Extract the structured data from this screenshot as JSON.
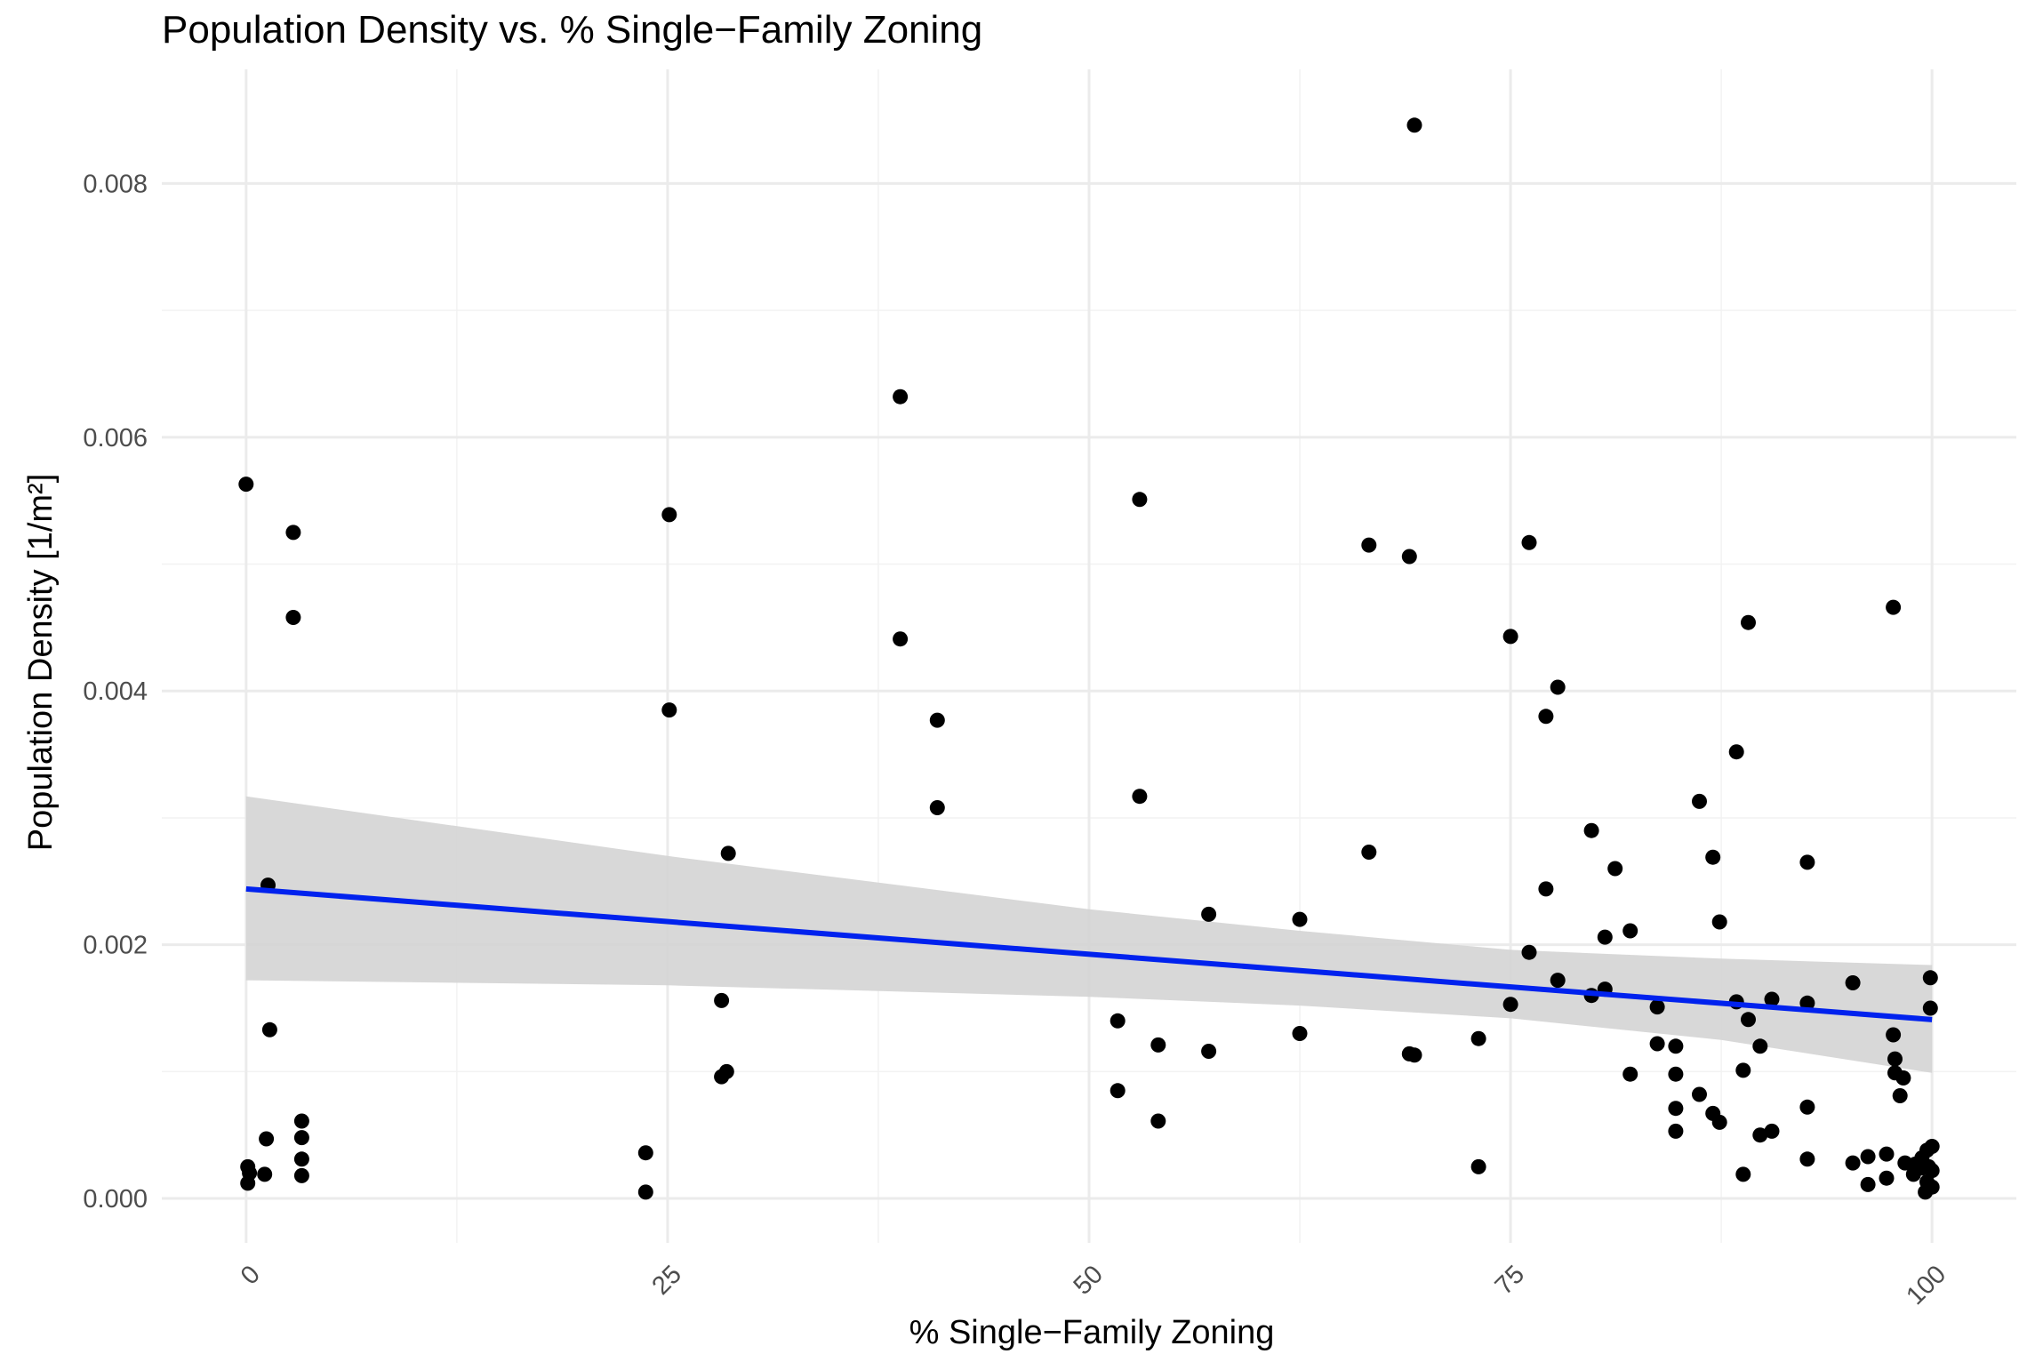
{
  "chart_data": {
    "type": "scatter",
    "title": "Population Density vs. % Single−Family Zoning",
    "xlabel": "% Single−Family Zoning",
    "ylabel": "Population Density",
    "ylabel_unit": "[1/m²]",
    "xlim": [
      -5,
      105
    ],
    "ylim": [
      -0.00035,
      0.0089
    ],
    "x_ticks": [
      0,
      25,
      50,
      75,
      100
    ],
    "x_tick_labels": [
      "0",
      "25",
      "50",
      "75",
      "100"
    ],
    "y_ticks": [
      0,
      0.002,
      0.004,
      0.006,
      0.008
    ],
    "y_tick_labels": [
      "0.000",
      "0.002",
      "0.004",
      "0.006",
      "0.008"
    ],
    "grid": true,
    "legend": "none",
    "point_color": "#000000",
    "points": [
      [
        0,
        0.00563
      ],
      [
        0.1,
        0.00025
      ],
      [
        0.1,
        0.00012
      ],
      [
        0.2,
        0.0002
      ],
      [
        1.1,
        0.00019
      ],
      [
        1.2,
        0.00047
      ],
      [
        1.3,
        0.00247
      ],
      [
        1.4,
        0.00133
      ],
      [
        2.8,
        0.00525
      ],
      [
        2.8,
        0.00458
      ],
      [
        3.3,
        0.00061
      ],
      [
        3.3,
        0.00048
      ],
      [
        3.3,
        0.00031
      ],
      [
        3.3,
        0.00018
      ],
      [
        23.7,
        0.00036
      ],
      [
        23.7,
        5e-05
      ],
      [
        25.1,
        0.00539
      ],
      [
        25.1,
        0.00385
      ],
      [
        28.2,
        0.00156
      ],
      [
        28.2,
        0.00096
      ],
      [
        28.5,
        0.001
      ],
      [
        28.6,
        0.00272
      ],
      [
        38.8,
        0.00632
      ],
      [
        38.8,
        0.00441
      ],
      [
        41,
        0.00377
      ],
      [
        41,
        0.00308
      ],
      [
        51.7,
        0.0014
      ],
      [
        51.7,
        0.00085
      ],
      [
        53,
        0.00551
      ],
      [
        53,
        0.00317
      ],
      [
        54.1,
        0.00121
      ],
      [
        54.1,
        0.00061
      ],
      [
        57.1,
        0.00224
      ],
      [
        57.1,
        0.00116
      ],
      [
        62.5,
        0.0022
      ],
      [
        62.5,
        0.0013
      ],
      [
        66.6,
        0.00515
      ],
      [
        66.6,
        0.00273
      ],
      [
        69,
        0.00506
      ],
      [
        69,
        0.00114
      ],
      [
        69.3,
        0.00113
      ],
      [
        69.3,
        0.00846
      ],
      [
        73.1,
        0.00126
      ],
      [
        73.1,
        0.00025
      ],
      [
        75,
        0.00443
      ],
      [
        75,
        0.00153
      ],
      [
        76.1,
        0.00517
      ],
      [
        76.1,
        0.00194
      ],
      [
        77.1,
        0.0038
      ],
      [
        77.1,
        0.00244
      ],
      [
        77.8,
        0.00403
      ],
      [
        77.8,
        0.00172
      ],
      [
        79.8,
        0.0029
      ],
      [
        79.8,
        0.0016
      ],
      [
        80.6,
        0.00206
      ],
      [
        80.6,
        0.00165
      ],
      [
        81.2,
        0.0026
      ],
      [
        82.1,
        0.00211
      ],
      [
        82.1,
        0.00098
      ],
      [
        83.7,
        0.00151
      ],
      [
        83.7,
        0.00122
      ],
      [
        84.8,
        0.0012
      ],
      [
        84.8,
        0.00098
      ],
      [
        84.8,
        0.00071
      ],
      [
        84.8,
        0.00053
      ],
      [
        86.2,
        0.00313
      ],
      [
        86.2,
        0.00082
      ],
      [
        87,
        0.00269
      ],
      [
        87,
        0.00067
      ],
      [
        87.4,
        0.00218
      ],
      [
        87.4,
        0.0006
      ],
      [
        88.4,
        0.00352
      ],
      [
        88.4,
        0.00155
      ],
      [
        88.8,
        0.00101
      ],
      [
        88.8,
        0.00019
      ],
      [
        89.1,
        0.00454
      ],
      [
        89.1,
        0.00141
      ],
      [
        89.8,
        0.0012
      ],
      [
        89.8,
        0.0005
      ],
      [
        90.5,
        0.00157
      ],
      [
        90.5,
        0.00053
      ],
      [
        92.6,
        0.00265
      ],
      [
        92.6,
        0.00154
      ],
      [
        92.6,
        0.00072
      ],
      [
        92.6,
        0.00031
      ],
      [
        95.3,
        0.0017
      ],
      [
        95.3,
        0.00028
      ],
      [
        96.2,
        0.00033
      ],
      [
        96.2,
        0.00011
      ],
      [
        97.3,
        0.00035
      ],
      [
        97.3,
        0.00016
      ],
      [
        97.7,
        0.00466
      ],
      [
        97.7,
        0.00129
      ],
      [
        97.8,
        0.0011
      ],
      [
        97.8,
        0.00099
      ],
      [
        98.1,
        0.00081
      ],
      [
        98.3,
        0.00095
      ],
      [
        98.4,
        0.00028
      ],
      [
        98.9,
        0.00019
      ],
      [
        99,
        0.00027
      ],
      [
        99.4,
        0.00024
      ],
      [
        99.4,
        0.00032
      ],
      [
        99.6,
        5e-05
      ],
      [
        99.7,
        0.00038
      ],
      [
        99.7,
        0.00013
      ],
      [
        99.8,
        0.00025
      ],
      [
        99.9,
        0.0015
      ],
      [
        99.9,
        0.00174
      ],
      [
        100,
        0.00041
      ],
      [
        100,
        0.00022
      ],
      [
        100,
        9e-05
      ]
    ],
    "trend_line": {
      "type": "linear",
      "color": "#0022ee",
      "x": [
        0,
        100
      ],
      "y": [
        0.00244,
        0.00141
      ]
    },
    "confidence_band": {
      "color": "#d4d4d4",
      "x": [
        0,
        25,
        50,
        62.5,
        75,
        87.5,
        100
      ],
      "lower": [
        0.00172,
        0.00168,
        0.00159,
        0.00152,
        0.00142,
        0.00125,
        0.00099
      ],
      "upper": [
        0.00317,
        0.0027,
        0.00228,
        0.00211,
        0.00196,
        0.00189,
        0.00184
      ]
    }
  }
}
